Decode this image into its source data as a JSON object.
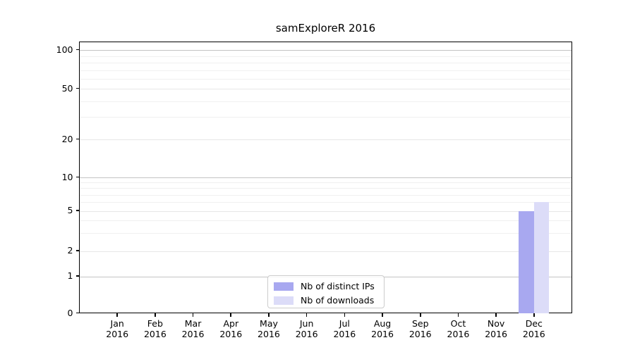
{
  "chart": {
    "title": "samExploreR 2016",
    "y_axis": {
      "tick_labels": [
        "0",
        "1",
        "2",
        "5",
        "10",
        "20",
        "50",
        "100"
      ],
      "tick_values": [
        0,
        1,
        2,
        5,
        10,
        20,
        50,
        100
      ]
    },
    "x_axis": {
      "year": "2016",
      "months": [
        "Jan",
        "Feb",
        "Mar",
        "Apr",
        "May",
        "Jun",
        "Jul",
        "Aug",
        "Sep",
        "Oct",
        "Nov",
        "Dec"
      ]
    },
    "legend": {
      "items": [
        {
          "label": "Nb of distinct IPs",
          "color": "#a8a8f0"
        },
        {
          "label": "Nb of downloads",
          "color": "#dcdcf8"
        }
      ]
    }
  },
  "chart_data": {
    "type": "bar",
    "title": "samExploreR 2016",
    "categories": [
      "Jan 2016",
      "Feb 2016",
      "Mar 2016",
      "Apr 2016",
      "May 2016",
      "Jun 2016",
      "Jul 2016",
      "Aug 2016",
      "Sep 2016",
      "Oct 2016",
      "Nov 2016",
      "Dec 2016"
    ],
    "series": [
      {
        "name": "Nb of distinct IPs",
        "color": "#a8a8f0",
        "values": [
          0,
          0,
          0,
          0,
          0,
          0,
          0,
          0,
          0,
          0,
          0,
          5
        ]
      },
      {
        "name": "Nb of downloads",
        "color": "#dcdcf8",
        "values": [
          0,
          0,
          0,
          0,
          0,
          0,
          0,
          0,
          0,
          0,
          0,
          6
        ]
      }
    ],
    "xlabel": "",
    "ylabel": "",
    "yscale": "log-like (0,1,2,5,10,20,50,100)",
    "y_ticks": [
      0,
      1,
      2,
      5,
      10,
      20,
      50,
      100
    ],
    "ylim": [
      0,
      120
    ],
    "grid": "horizontal, with log minor gridlines",
    "legend_position": "lower center"
  }
}
